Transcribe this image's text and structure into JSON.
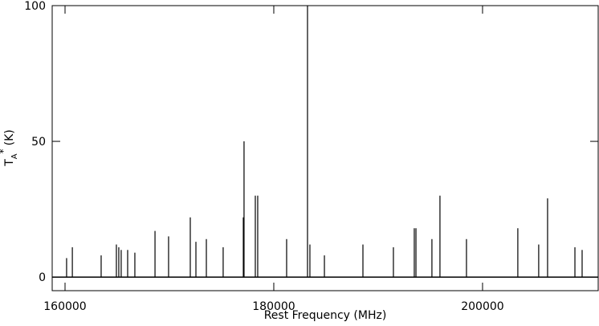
{
  "chart_data": {
    "type": "stem",
    "x_label": "Rest Frequency (MHz)",
    "y_label": {
      "main": "T",
      "sub": "A",
      "sup": "*",
      "unit": "(K)"
    },
    "color": "#000000",
    "xlim": [
      158770,
      211080
    ],
    "ylim": [
      -5,
      100
    ],
    "xticks": [
      160000,
      180000,
      200000
    ],
    "yticks": [
      0,
      50,
      100
    ],
    "x": [
      160150,
      160700,
      163460,
      164920,
      165150,
      165380,
      166000,
      166690,
      168620,
      169920,
      172000,
      172540,
      173540,
      175150,
      177080,
      177150,
      178230,
      178460,
      181230,
      183230,
      183460,
      184850,
      188540,
      191460,
      193460,
      193620,
      195150,
      195920,
      198460,
      203380,
      205380,
      206230,
      208850,
      209540
    ],
    "values": [
      7,
      11,
      8,
      12,
      11,
      10,
      10,
      9,
      17,
      15,
      22,
      13,
      14,
      11,
      22,
      50,
      30,
      30,
      14,
      100,
      12,
      8,
      12,
      11,
      18,
      18,
      14,
      30,
      14,
      18,
      12,
      29,
      11,
      10
    ]
  }
}
